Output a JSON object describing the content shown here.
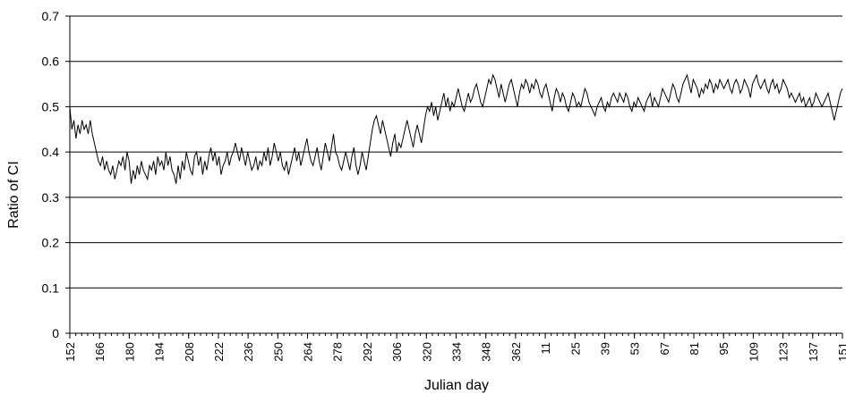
{
  "chart_data": {
    "type": "line",
    "xlabel": "Julian day",
    "ylabel": "Ratio of CI",
    "ylim": [
      0,
      0.7
    ],
    "yticks": [
      "0",
      "0.1",
      "0.2",
      "0.3",
      "0.4",
      "0.5",
      "0.6",
      "0.7"
    ],
    "xticks": [
      "152",
      "166",
      "180",
      "194",
      "208",
      "222",
      "236",
      "250",
      "264",
      "278",
      "292",
      "306",
      "320",
      "334",
      "348",
      "362",
      "11",
      "25",
      "39",
      "53",
      "67",
      "81",
      "95",
      "109",
      "123",
      "137",
      "151"
    ],
    "grid": "horizontal",
    "legend": "none",
    "line_color": "#000000",
    "series": [
      {
        "values": [
          0.5,
          0.45,
          0.47,
          0.43,
          0.46,
          0.44,
          0.47,
          0.45,
          0.46,
          0.44,
          0.47,
          0.44,
          0.42,
          0.4,
          0.38,
          0.37,
          0.39,
          0.36,
          0.38,
          0.36,
          0.35,
          0.37,
          0.34,
          0.36,
          0.38,
          0.37,
          0.39,
          0.36,
          0.4,
          0.38,
          0.33,
          0.36,
          0.34,
          0.37,
          0.35,
          0.38,
          0.36,
          0.35,
          0.34,
          0.37,
          0.36,
          0.38,
          0.35,
          0.39,
          0.37,
          0.38,
          0.36,
          0.4,
          0.37,
          0.39,
          0.36,
          0.35,
          0.33,
          0.37,
          0.34,
          0.38,
          0.36,
          0.4,
          0.38,
          0.36,
          0.35,
          0.39,
          0.4,
          0.37,
          0.39,
          0.35,
          0.38,
          0.36,
          0.39,
          0.41,
          0.38,
          0.4,
          0.37,
          0.39,
          0.35,
          0.37,
          0.38,
          0.4,
          0.37,
          0.39,
          0.4,
          0.42,
          0.4,
          0.38,
          0.41,
          0.39,
          0.37,
          0.4,
          0.38,
          0.36,
          0.37,
          0.39,
          0.36,
          0.38,
          0.37,
          0.4,
          0.38,
          0.41,
          0.37,
          0.39,
          0.42,
          0.4,
          0.38,
          0.4,
          0.37,
          0.36,
          0.38,
          0.35,
          0.37,
          0.39,
          0.41,
          0.38,
          0.4,
          0.37,
          0.39,
          0.41,
          0.43,
          0.4,
          0.38,
          0.37,
          0.39,
          0.41,
          0.38,
          0.36,
          0.39,
          0.42,
          0.4,
          0.38,
          0.41,
          0.44,
          0.4,
          0.39,
          0.37,
          0.36,
          0.38,
          0.4,
          0.38,
          0.36,
          0.39,
          0.41,
          0.37,
          0.35,
          0.37,
          0.4,
          0.38,
          0.36,
          0.39,
          0.42,
          0.45,
          0.47,
          0.48,
          0.46,
          0.44,
          0.47,
          0.45,
          0.43,
          0.41,
          0.39,
          0.42,
          0.44,
          0.4,
          0.42,
          0.41,
          0.43,
          0.45,
          0.47,
          0.45,
          0.43,
          0.41,
          0.44,
          0.46,
          0.44,
          0.42,
          0.45,
          0.48,
          0.5,
          0.49,
          0.51,
          0.48,
          0.5,
          0.47,
          0.49,
          0.51,
          0.53,
          0.5,
          0.52,
          0.49,
          0.51,
          0.5,
          0.52,
          0.54,
          0.52,
          0.5,
          0.49,
          0.51,
          0.53,
          0.51,
          0.52,
          0.54,
          0.55,
          0.53,
          0.51,
          0.5,
          0.52,
          0.54,
          0.56,
          0.55,
          0.57,
          0.56,
          0.54,
          0.52,
          0.55,
          0.53,
          0.51,
          0.53,
          0.55,
          0.56,
          0.54,
          0.52,
          0.5,
          0.53,
          0.55,
          0.54,
          0.56,
          0.55,
          0.53,
          0.55,
          0.54,
          0.56,
          0.55,
          0.53,
          0.52,
          0.54,
          0.55,
          0.53,
          0.51,
          0.49,
          0.52,
          0.54,
          0.53,
          0.51,
          0.53,
          0.52,
          0.5,
          0.49,
          0.51,
          0.53,
          0.52,
          0.5,
          0.51,
          0.5,
          0.52,
          0.54,
          0.53,
          0.51,
          0.5,
          0.49,
          0.48,
          0.5,
          0.51,
          0.52,
          0.5,
          0.49,
          0.51,
          0.5,
          0.52,
          0.53,
          0.52,
          0.51,
          0.53,
          0.52,
          0.51,
          0.53,
          0.52,
          0.5,
          0.49,
          0.51,
          0.5,
          0.52,
          0.51,
          0.5,
          0.49,
          0.51,
          0.52,
          0.53,
          0.5,
          0.52,
          0.51,
          0.5,
          0.52,
          0.54,
          0.53,
          0.52,
          0.51,
          0.53,
          0.55,
          0.54,
          0.52,
          0.51,
          0.53,
          0.55,
          0.56,
          0.57,
          0.55,
          0.53,
          0.56,
          0.55,
          0.54,
          0.52,
          0.54,
          0.53,
          0.55,
          0.54,
          0.56,
          0.55,
          0.53,
          0.55,
          0.54,
          0.56,
          0.55,
          0.54,
          0.55,
          0.56,
          0.54,
          0.53,
          0.55,
          0.56,
          0.55,
          0.53,
          0.54,
          0.56,
          0.55,
          0.54,
          0.52,
          0.55,
          0.56,
          0.57,
          0.55,
          0.54,
          0.55,
          0.56,
          0.54,
          0.53,
          0.55,
          0.56,
          0.54,
          0.55,
          0.53,
          0.54,
          0.56,
          0.55,
          0.54,
          0.52,
          0.53,
          0.52,
          0.51,
          0.52,
          0.53,
          0.51,
          0.52,
          0.5,
          0.51,
          0.52,
          0.5,
          0.51,
          0.53,
          0.52,
          0.51,
          0.5,
          0.51,
          0.52,
          0.53,
          0.51,
          0.49,
          0.47,
          0.49,
          0.51,
          0.53,
          0.54
        ]
      }
    ]
  }
}
